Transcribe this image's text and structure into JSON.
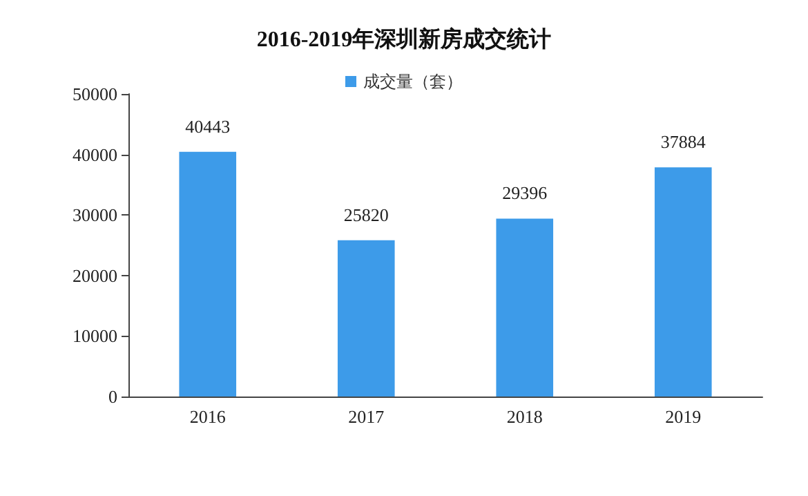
{
  "chart_data": {
    "type": "bar",
    "title": "2016-2019年深圳新房成交统计",
    "categories": [
      "2016",
      "2017",
      "2018",
      "2019"
    ],
    "series": [
      {
        "name": "成交量（套）",
        "color": "#3d9be9",
        "values": [
          40443,
          25820,
          29396,
          37884
        ]
      }
    ],
    "ylim": [
      0,
      50000
    ],
    "yticks": [
      0,
      10000,
      20000,
      30000,
      40000,
      50000
    ],
    "data_labels": true,
    "legend": "top",
    "grid": false
  }
}
